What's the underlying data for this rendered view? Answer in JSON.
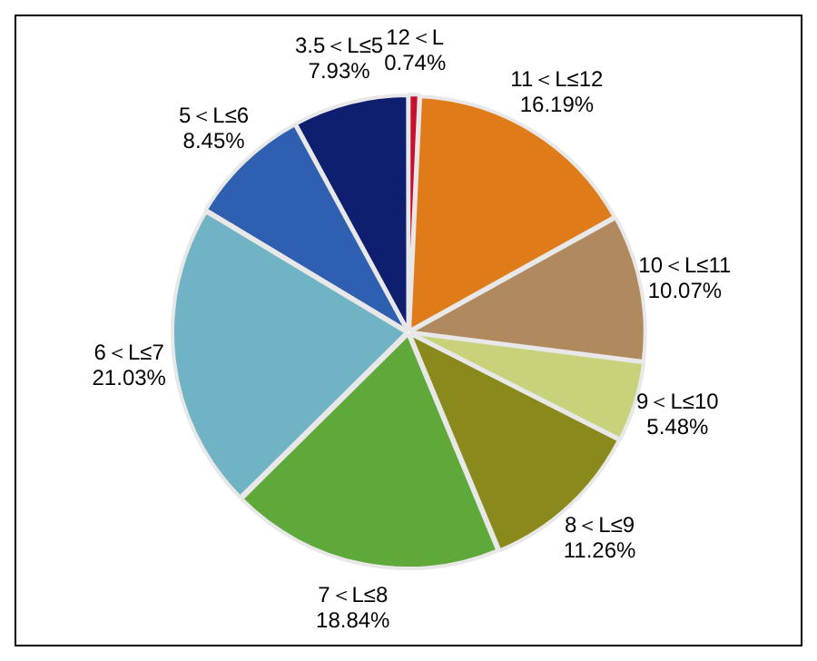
{
  "chart_data": {
    "type": "pie",
    "categories": [
      "12＜L",
      "11＜L≤12",
      "10＜L≤11",
      "9＜L≤10",
      "8＜L≤9",
      "7＜L≤8",
      "6＜L≤7",
      "5＜L≤6",
      "3.5＜L≤5"
    ],
    "values": [
      0.74,
      16.19,
      10.07,
      5.48,
      11.26,
      18.84,
      21.03,
      8.45,
      7.93
    ],
    "value_labels": [
      "0.74%",
      "16.19%",
      "10.07%",
      "5.48%",
      "11.26%",
      "18.84%",
      "21.03%",
      "8.45%",
      "7.93%"
    ],
    "colors": [
      "#c8102e",
      "#e07b1a",
      "#b08a5e",
      "#c9d27a",
      "#8a8a1c",
      "#5fa83a",
      "#6fb3c4",
      "#2f5fb0",
      "#0f1f70"
    ],
    "legend": false
  }
}
